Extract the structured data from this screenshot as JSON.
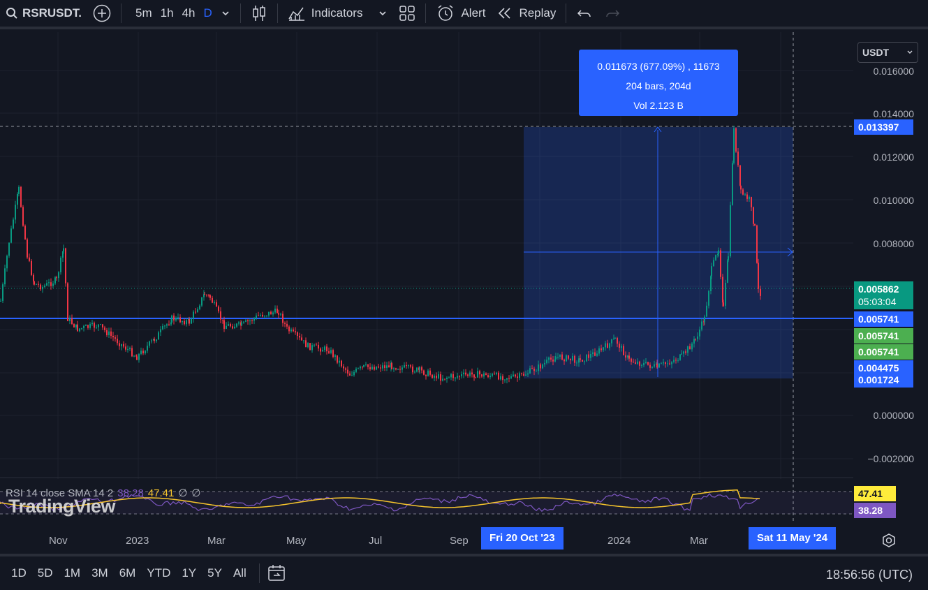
{
  "toolbar": {
    "symbol": "RSRUSDT.",
    "timeframes": [
      "5m",
      "1h",
      "4h",
      "D"
    ],
    "active_timeframe": "D",
    "indicators_label": "Indicators",
    "alert_label": "Alert",
    "replay_label": "Replay"
  },
  "currency_select": "USDT",
  "price_axis": {
    "ticks": [
      "0.016000",
      "0.014000",
      "0.012000",
      "0.010000",
      "0.008000",
      "0.000000",
      "−0.002000"
    ]
  },
  "price_tags": {
    "crosshair": "0.013397",
    "last_price": "0.005862",
    "countdown": "05:03:04",
    "hline": "0.005741",
    "green1": "0.005741",
    "green2": "0.005741",
    "range_top": "0.004475",
    "range_bottom": "0.001724"
  },
  "measure": {
    "line1": "0.011673 (677.09%) , 11673",
    "line2": "204 bars, 204d",
    "line3": "Vol 2.123 B"
  },
  "rsi": {
    "label": "RSI 14 close SMA 14 2",
    "rsi_value": "38.28",
    "sma_value": "47.41",
    "extra1": "∅",
    "extra2": "∅",
    "tag_sma": "47.41",
    "tag_rsi": "38.28"
  },
  "logo": "TradingView",
  "time_axis": {
    "labels": [
      "Nov",
      "2023",
      "Mar",
      "May",
      "Jul",
      "Sep",
      "2024",
      "Mar"
    ],
    "start_tag": "Fri 20 Oct '23",
    "end_tag": "Sat 11 May '24"
  },
  "bottom": {
    "ranges": [
      "1D",
      "5D",
      "1M",
      "3M",
      "6M",
      "YTD",
      "1Y",
      "5Y",
      "All"
    ],
    "clock": "18:56:56 (UTC)"
  },
  "colors": {
    "accent": "#2962ff",
    "up": "#089981",
    "down": "#f23645",
    "rsi_line": "#7e57c2",
    "sma_line": "#f7c52c"
  }
}
